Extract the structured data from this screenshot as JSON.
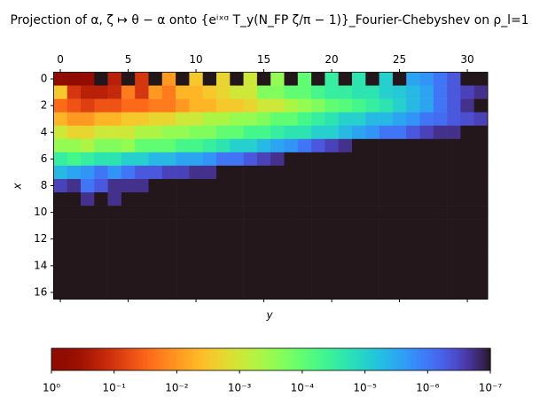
{
  "chart_data": {
    "type": "heatmap",
    "title": "Projection of α, ζ ↦ θ − α onto {eⁱˣᵅ T_y(N_FP ζ/π − 1)}_Fourier-Chebyshev on ρ_l=1",
    "xlabel": "y",
    "ylabel": "x",
    "xlim": [
      -0.5,
      31.5
    ],
    "ylim": [
      16.5,
      -0.5
    ],
    "xticks": [
      0,
      5,
      10,
      15,
      20,
      25,
      30
    ],
    "yticks": [
      0,
      2,
      4,
      6,
      8,
      10,
      12,
      14,
      16
    ],
    "colormap": "turbo_r",
    "log_scale": true,
    "clim": [
      1,
      1e-07
    ],
    "cticks": [
      {
        "value": 1,
        "label": "10⁰"
      },
      {
        "value": 0.1,
        "label": "10⁻¹"
      },
      {
        "value": 0.01,
        "label": "10⁻²"
      },
      {
        "value": 0.001,
        "label": "10⁻³"
      },
      {
        "value": 0.0001,
        "label": "10⁻⁴"
      },
      {
        "value": 1e-05,
        "label": "10⁻⁵"
      },
      {
        "value": 1e-06,
        "label": "10⁻⁶"
      },
      {
        "value": 1e-07,
        "label": "10⁻⁷"
      }
    ],
    "z": [
      [
        1,
        0.8,
        0.6,
        1e-07,
        0.2,
        1e-07,
        0.1,
        1e-07,
        0.01,
        1e-07,
        0.003,
        1e-07,
        0.002,
        1e-07,
        0.001,
        1e-07,
        0.0003,
        1e-07,
        0.0001,
        1e-07,
        3e-05,
        1e-07,
        2e-05,
        1e-07,
        1e-05,
        1e-07,
        3e-06,
        2e-06,
        1e-06,
        5e-07,
        1e-07,
        1e-07
      ],
      [
        0.003,
        0.1,
        0.2,
        0.2,
        0.15,
        0.02,
        0.1,
        0.01,
        0.02,
        0.005,
        0.005,
        0.003,
        0.002,
        0.001,
        0.001,
        0.0002,
        0.0002,
        0.0001,
        0.0001,
        5e-05,
        3e-05,
        3e-05,
        2e-05,
        2e-05,
        1e-05,
        8e-06,
        5e-06,
        3e-06,
        1e-06,
        5e-07,
        3e-07,
        2e-07
      ],
      [
        0.03,
        0.05,
        0.08,
        0.05,
        0.05,
        0.03,
        0.03,
        0.02,
        0.02,
        0.01,
        0.005,
        0.005,
        0.003,
        0.003,
        0.002,
        0.001,
        0.001,
        0.0005,
        0.0003,
        0.0002,
        0.0001,
        8e-05,
        5e-05,
        3e-05,
        2e-05,
        1e-05,
        5e-06,
        3e-06,
        1e-06,
        5e-07,
        2e-07,
        1e-07
      ],
      [
        0.005,
        0.01,
        0.01,
        0.005,
        0.005,
        0.003,
        0.003,
        0.002,
        0.002,
        0.001,
        0.001,
        0.0005,
        0.0005,
        0.0003,
        0.0003,
        0.0002,
        0.0001,
        0.0001,
        5e-05,
        3e-05,
        2e-05,
        1e-05,
        1e-05,
        5e-06,
        5e-06,
        3e-06,
        2e-06,
        1e-06,
        8e-07,
        5e-07,
        4e-07,
        3e-07
      ],
      [
        0.001,
        0.002,
        0.002,
        0.001,
        0.001,
        0.001,
        0.0005,
        0.0005,
        0.0003,
        0.0003,
        0.0002,
        0.0002,
        0.0001,
        0.0001,
        5e-05,
        5e-05,
        3e-05,
        2e-05,
        2e-05,
        1e-05,
        1e-05,
        5e-06,
        3e-06,
        2e-06,
        1e-06,
        1e-06,
        5e-07,
        3e-07,
        2e-07,
        2e-07,
        1e-07,
        1e-07
      ],
      [
        0.0003,
        0.0003,
        0.0005,
        0.0002,
        0.0002,
        0.0003,
        0.0001,
        0.0001,
        0.0001,
        5e-05,
        5e-05,
        3e-05,
        2e-05,
        1e-05,
        1e-05,
        5e-06,
        3e-06,
        2e-06,
        1e-06,
        5e-07,
        3e-07,
        2e-07,
        1e-07,
        1e-07,
        1e-07,
        1e-07,
        1e-07,
        1e-07,
        1e-07,
        1e-07,
        1e-07,
        1e-07
      ],
      [
        3e-05,
        5e-05,
        3e-05,
        2e-05,
        2e-05,
        1e-05,
        1e-05,
        5e-06,
        5e-06,
        3e-06,
        3e-06,
        2e-06,
        1e-06,
        1e-06,
        5e-07,
        3e-07,
        2e-07,
        1e-07,
        1e-07,
        1e-07,
        1e-07,
        1e-07,
        1e-07,
        1e-07,
        1e-07,
        1e-07,
        1e-07,
        1e-07,
        1e-07,
        1e-07,
        1e-07,
        1e-07
      ],
      [
        5e-06,
        3e-06,
        2e-06,
        1e-06,
        2e-06,
        1e-06,
        5e-07,
        5e-07,
        3e-07,
        3e-07,
        2e-07,
        2e-07,
        1e-07,
        1e-07,
        1e-07,
        1e-07,
        1e-07,
        1e-07,
        1e-07,
        1e-07,
        1e-07,
        1e-07,
        1e-07,
        1e-07,
        1e-07,
        1e-07,
        1e-07,
        1e-07,
        1e-07,
        1e-07,
        1e-07,
        1e-07
      ],
      [
        3e-07,
        2e-07,
        1e-06,
        5e-07,
        2e-07,
        2e-07,
        2e-07,
        1e-07,
        1e-07,
        1e-07,
        1e-07,
        1e-07,
        1e-07,
        1e-07,
        1e-07,
        1e-07,
        1e-07,
        1e-07,
        1e-07,
        1e-07,
        1e-07,
        1e-07,
        1e-07,
        1e-07,
        1e-07,
        1e-07,
        1e-07,
        1e-07,
        1e-07,
        1e-07,
        1e-07,
        1e-07
      ],
      [
        1e-07,
        1e-07,
        2e-07,
        1e-07,
        2e-07,
        1e-07,
        1e-07,
        1e-07,
        1e-07,
        1e-07,
        1e-07,
        1e-07,
        1e-07,
        1e-07,
        1e-07,
        1e-07,
        1e-07,
        1e-07,
        1e-07,
        1e-07,
        1e-07,
        1e-07,
        1e-07,
        1e-07,
        1e-07,
        1e-07,
        1e-07,
        1e-07,
        1e-07,
        1e-07,
        1e-07,
        1e-07
      ],
      [
        1e-07,
        1e-07,
        1e-07,
        1e-07,
        1e-07,
        1e-07,
        1e-07,
        1e-07,
        1e-07,
        1e-07,
        1e-07,
        1e-07,
        1e-07,
        1e-07,
        1e-07,
        1e-07,
        1e-07,
        1e-07,
        1e-07,
        1e-07,
        1e-07,
        1e-07,
        1e-07,
        1e-07,
        1e-07,
        1e-07,
        1e-07,
        1e-07,
        1e-07,
        1e-07,
        1e-07,
        1e-07
      ],
      [
        1e-07,
        1e-07,
        1e-07,
        1e-07,
        1e-07,
        1e-07,
        1e-07,
        1e-07,
        1e-07,
        1e-07,
        1e-07,
        1e-07,
        1e-07,
        1e-07,
        1e-07,
        1e-07,
        1e-07,
        1e-07,
        1e-07,
        1e-07,
        1e-07,
        1e-07,
        1e-07,
        1e-07,
        1e-07,
        1e-07,
        1e-07,
        1e-07,
        1e-07,
        1e-07,
        1e-07,
        1e-07
      ],
      [
        1e-07,
        1e-07,
        1e-07,
        1e-07,
        1e-07,
        1e-07,
        1e-07,
        1e-07,
        1e-07,
        1e-07,
        1e-07,
        1e-07,
        1e-07,
        1e-07,
        1e-07,
        1e-07,
        1e-07,
        1e-07,
        1e-07,
        1e-07,
        1e-07,
        1e-07,
        1e-07,
        1e-07,
        1e-07,
        1e-07,
        1e-07,
        1e-07,
        1e-07,
        1e-07,
        1e-07,
        1e-07
      ],
      [
        1e-07,
        1e-07,
        1e-07,
        1e-07,
        1e-07,
        1e-07,
        1e-07,
        1e-07,
        1e-07,
        1e-07,
        1e-07,
        1e-07,
        1e-07,
        1e-07,
        1e-07,
        1e-07,
        1e-07,
        1e-07,
        1e-07,
        1e-07,
        1e-07,
        1e-07,
        1e-07,
        1e-07,
        1e-07,
        1e-07,
        1e-07,
        1e-07,
        1e-07,
        1e-07,
        1e-07,
        1e-07
      ],
      [
        1e-07,
        1e-07,
        1e-07,
        1e-07,
        1e-07,
        1e-07,
        1e-07,
        1e-07,
        1e-07,
        1e-07,
        1e-07,
        1e-07,
        1e-07,
        1e-07,
        1e-07,
        1e-07,
        1e-07,
        1e-07,
        1e-07,
        1e-07,
        1e-07,
        1e-07,
        1e-07,
        1e-07,
        1e-07,
        1e-07,
        1e-07,
        1e-07,
        1e-07,
        1e-07,
        1e-07,
        1e-07
      ],
      [
        1e-07,
        1e-07,
        1e-07,
        1e-07,
        1e-07,
        1e-07,
        1e-07,
        1e-07,
        1e-07,
        1e-07,
        1e-07,
        1e-07,
        1e-07,
        1e-07,
        1e-07,
        1e-07,
        1e-07,
        1e-07,
        1e-07,
        1e-07,
        1e-07,
        1e-07,
        1e-07,
        1e-07,
        1e-07,
        1e-07,
        1e-07,
        1e-07,
        1e-07,
        1e-07,
        1e-07,
        1e-07
      ],
      [
        1e-07,
        1e-07,
        1e-07,
        1e-07,
        1e-07,
        1e-07,
        1e-07,
        1e-07,
        1e-07,
        1e-07,
        1e-07,
        1e-07,
        1e-07,
        1e-07,
        1e-07,
        1e-07,
        1e-07,
        1e-07,
        1e-07,
        1e-07,
        1e-07,
        1e-07,
        1e-07,
        1e-07,
        1e-07,
        1e-07,
        1e-07,
        1e-07,
        1e-07,
        1e-07,
        1e-07,
        1e-07
      ]
    ]
  }
}
